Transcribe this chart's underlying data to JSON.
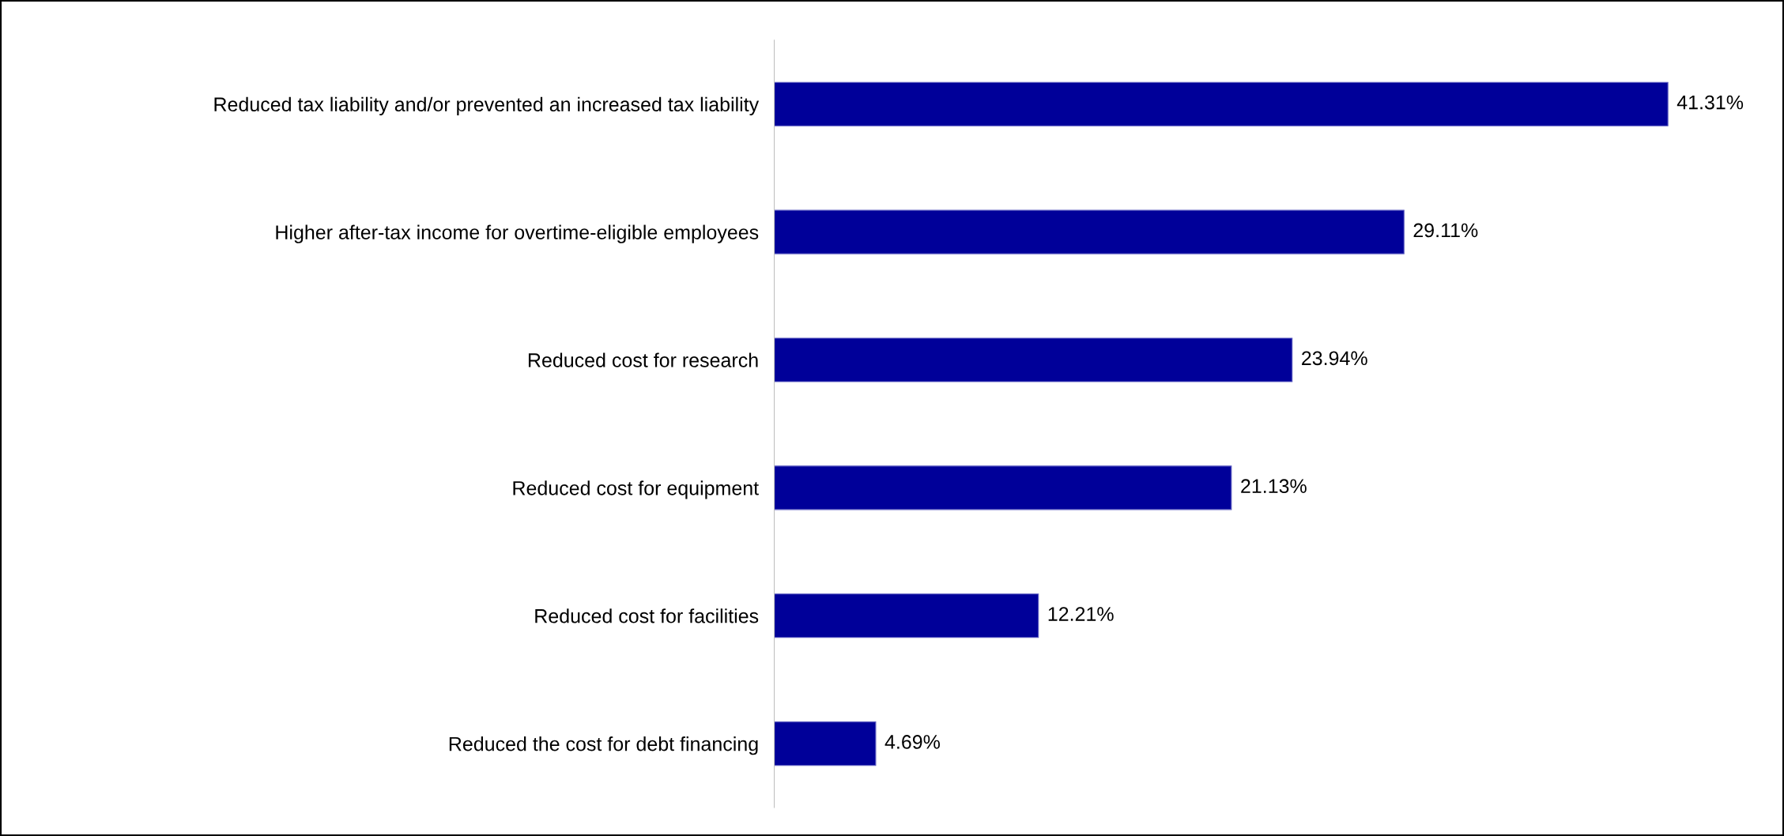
{
  "chart_data": {
    "type": "bar",
    "orientation": "horizontal",
    "categories": [
      "Reduced tax liability and/or prevented an increased tax liability",
      "Higher after-tax income for overtime-eligible employees",
      "Reduced cost for research",
      "Reduced cost for equipment",
      "Reduced cost for facilities",
      "Reduced the cost for debt financing"
    ],
    "values": [
      41.31,
      29.11,
      23.94,
      21.13,
      12.21,
      4.69
    ],
    "value_labels": [
      "41.31%",
      "29.11%",
      "23.94%",
      "21.13%",
      "12.21%",
      "4.69%"
    ],
    "color": "#000099",
    "grid": false,
    "legend": false
  }
}
